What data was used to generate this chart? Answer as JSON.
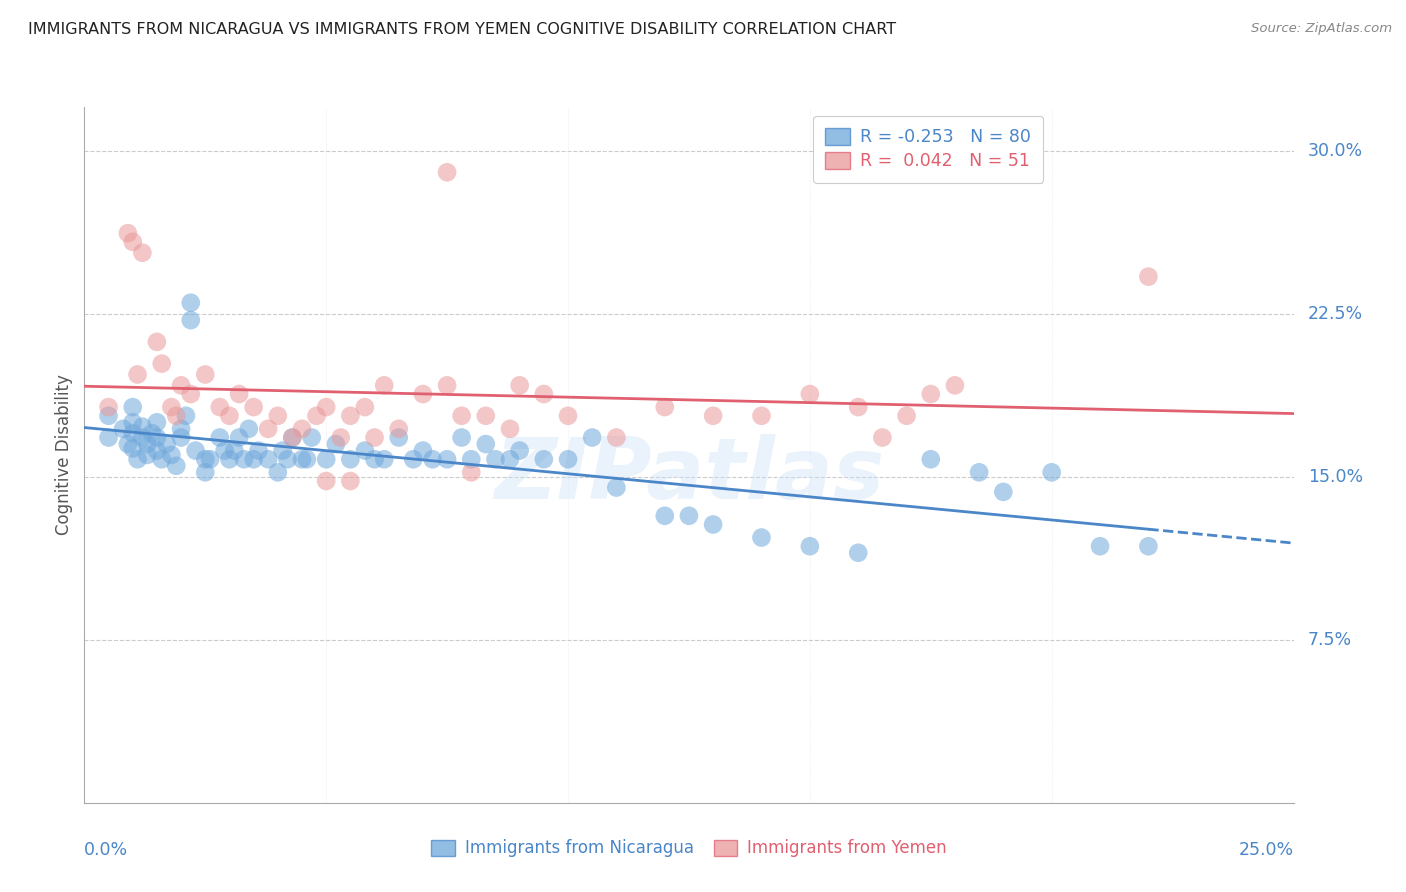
{
  "title": "IMMIGRANTS FROM NICARAGUA VS IMMIGRANTS FROM YEMEN COGNITIVE DISABILITY CORRELATION CHART",
  "source": "Source: ZipAtlas.com",
  "ylabel": "Cognitive Disability",
  "yticks": [
    0.075,
    0.15,
    0.225,
    0.3
  ],
  "ytick_labels": [
    "7.5%",
    "15.0%",
    "22.5%",
    "30.0%"
  ],
  "xlim": [
    0.0,
    0.25
  ],
  "ylim": [
    0.0,
    0.32
  ],
  "nicaragua_R": -0.253,
  "nicaragua_N": 80,
  "yemen_R": 0.042,
  "yemen_N": 51,
  "nicaragua_color": "#6fa8dc",
  "yemen_color": "#ea9999",
  "nicaragua_line_color": "#4a86c8",
  "yemen_line_color": "#e06070",
  "background_color": "#ffffff",
  "axis_label_color": "#4a86c8",
  "watermark": "ZIPatlas",
  "nicaragua_scatter_x": [
    0.005,
    0.005,
    0.008,
    0.009,
    0.01,
    0.01,
    0.01,
    0.01,
    0.011,
    0.012,
    0.012,
    0.013,
    0.013,
    0.014,
    0.015,
    0.015,
    0.015,
    0.016,
    0.017,
    0.018,
    0.019,
    0.02,
    0.02,
    0.021,
    0.022,
    0.022,
    0.023,
    0.025,
    0.025,
    0.026,
    0.028,
    0.029,
    0.03,
    0.031,
    0.032,
    0.033,
    0.034,
    0.035,
    0.036,
    0.038,
    0.04,
    0.041,
    0.042,
    0.043,
    0.045,
    0.046,
    0.047,
    0.05,
    0.052,
    0.055,
    0.058,
    0.06,
    0.062,
    0.065,
    0.068,
    0.07,
    0.072,
    0.075,
    0.078,
    0.08,
    0.083,
    0.085,
    0.088,
    0.09,
    0.095,
    0.1,
    0.105,
    0.11,
    0.12,
    0.125,
    0.13,
    0.14,
    0.15,
    0.16,
    0.175,
    0.185,
    0.19,
    0.2,
    0.21,
    0.22
  ],
  "nicaragua_scatter_y": [
    0.178,
    0.168,
    0.172,
    0.165,
    0.182,
    0.175,
    0.17,
    0.163,
    0.158,
    0.168,
    0.173,
    0.16,
    0.165,
    0.17,
    0.175,
    0.168,
    0.162,
    0.158,
    0.165,
    0.16,
    0.155,
    0.172,
    0.168,
    0.178,
    0.23,
    0.222,
    0.162,
    0.158,
    0.152,
    0.158,
    0.168,
    0.162,
    0.158,
    0.162,
    0.168,
    0.158,
    0.172,
    0.158,
    0.162,
    0.158,
    0.152,
    0.162,
    0.158,
    0.168,
    0.158,
    0.158,
    0.168,
    0.158,
    0.165,
    0.158,
    0.162,
    0.158,
    0.158,
    0.168,
    0.158,
    0.162,
    0.158,
    0.158,
    0.168,
    0.158,
    0.165,
    0.158,
    0.158,
    0.162,
    0.158,
    0.158,
    0.168,
    0.145,
    0.132,
    0.132,
    0.128,
    0.122,
    0.118,
    0.115,
    0.158,
    0.152,
    0.143,
    0.152,
    0.118,
    0.118
  ],
  "yemen_scatter_x": [
    0.005,
    0.009,
    0.01,
    0.011,
    0.012,
    0.015,
    0.016,
    0.018,
    0.019,
    0.02,
    0.022,
    0.025,
    0.028,
    0.03,
    0.032,
    0.035,
    0.038,
    0.04,
    0.043,
    0.045,
    0.048,
    0.05,
    0.053,
    0.055,
    0.058,
    0.06,
    0.062,
    0.065,
    0.07,
    0.075,
    0.078,
    0.08,
    0.083,
    0.088,
    0.09,
    0.095,
    0.1,
    0.075,
    0.11,
    0.12,
    0.13,
    0.05,
    0.055,
    0.14,
    0.15,
    0.16,
    0.22,
    0.165,
    0.17,
    0.175,
    0.18
  ],
  "yemen_scatter_y": [
    0.182,
    0.262,
    0.258,
    0.197,
    0.253,
    0.212,
    0.202,
    0.182,
    0.178,
    0.192,
    0.188,
    0.197,
    0.182,
    0.178,
    0.188,
    0.182,
    0.172,
    0.178,
    0.168,
    0.172,
    0.178,
    0.182,
    0.168,
    0.178,
    0.182,
    0.168,
    0.192,
    0.172,
    0.188,
    0.29,
    0.178,
    0.152,
    0.178,
    0.172,
    0.192,
    0.188,
    0.178,
    0.192,
    0.168,
    0.182,
    0.178,
    0.148,
    0.148,
    0.178,
    0.188,
    0.182,
    0.242,
    0.168,
    0.178,
    0.188,
    0.192
  ]
}
